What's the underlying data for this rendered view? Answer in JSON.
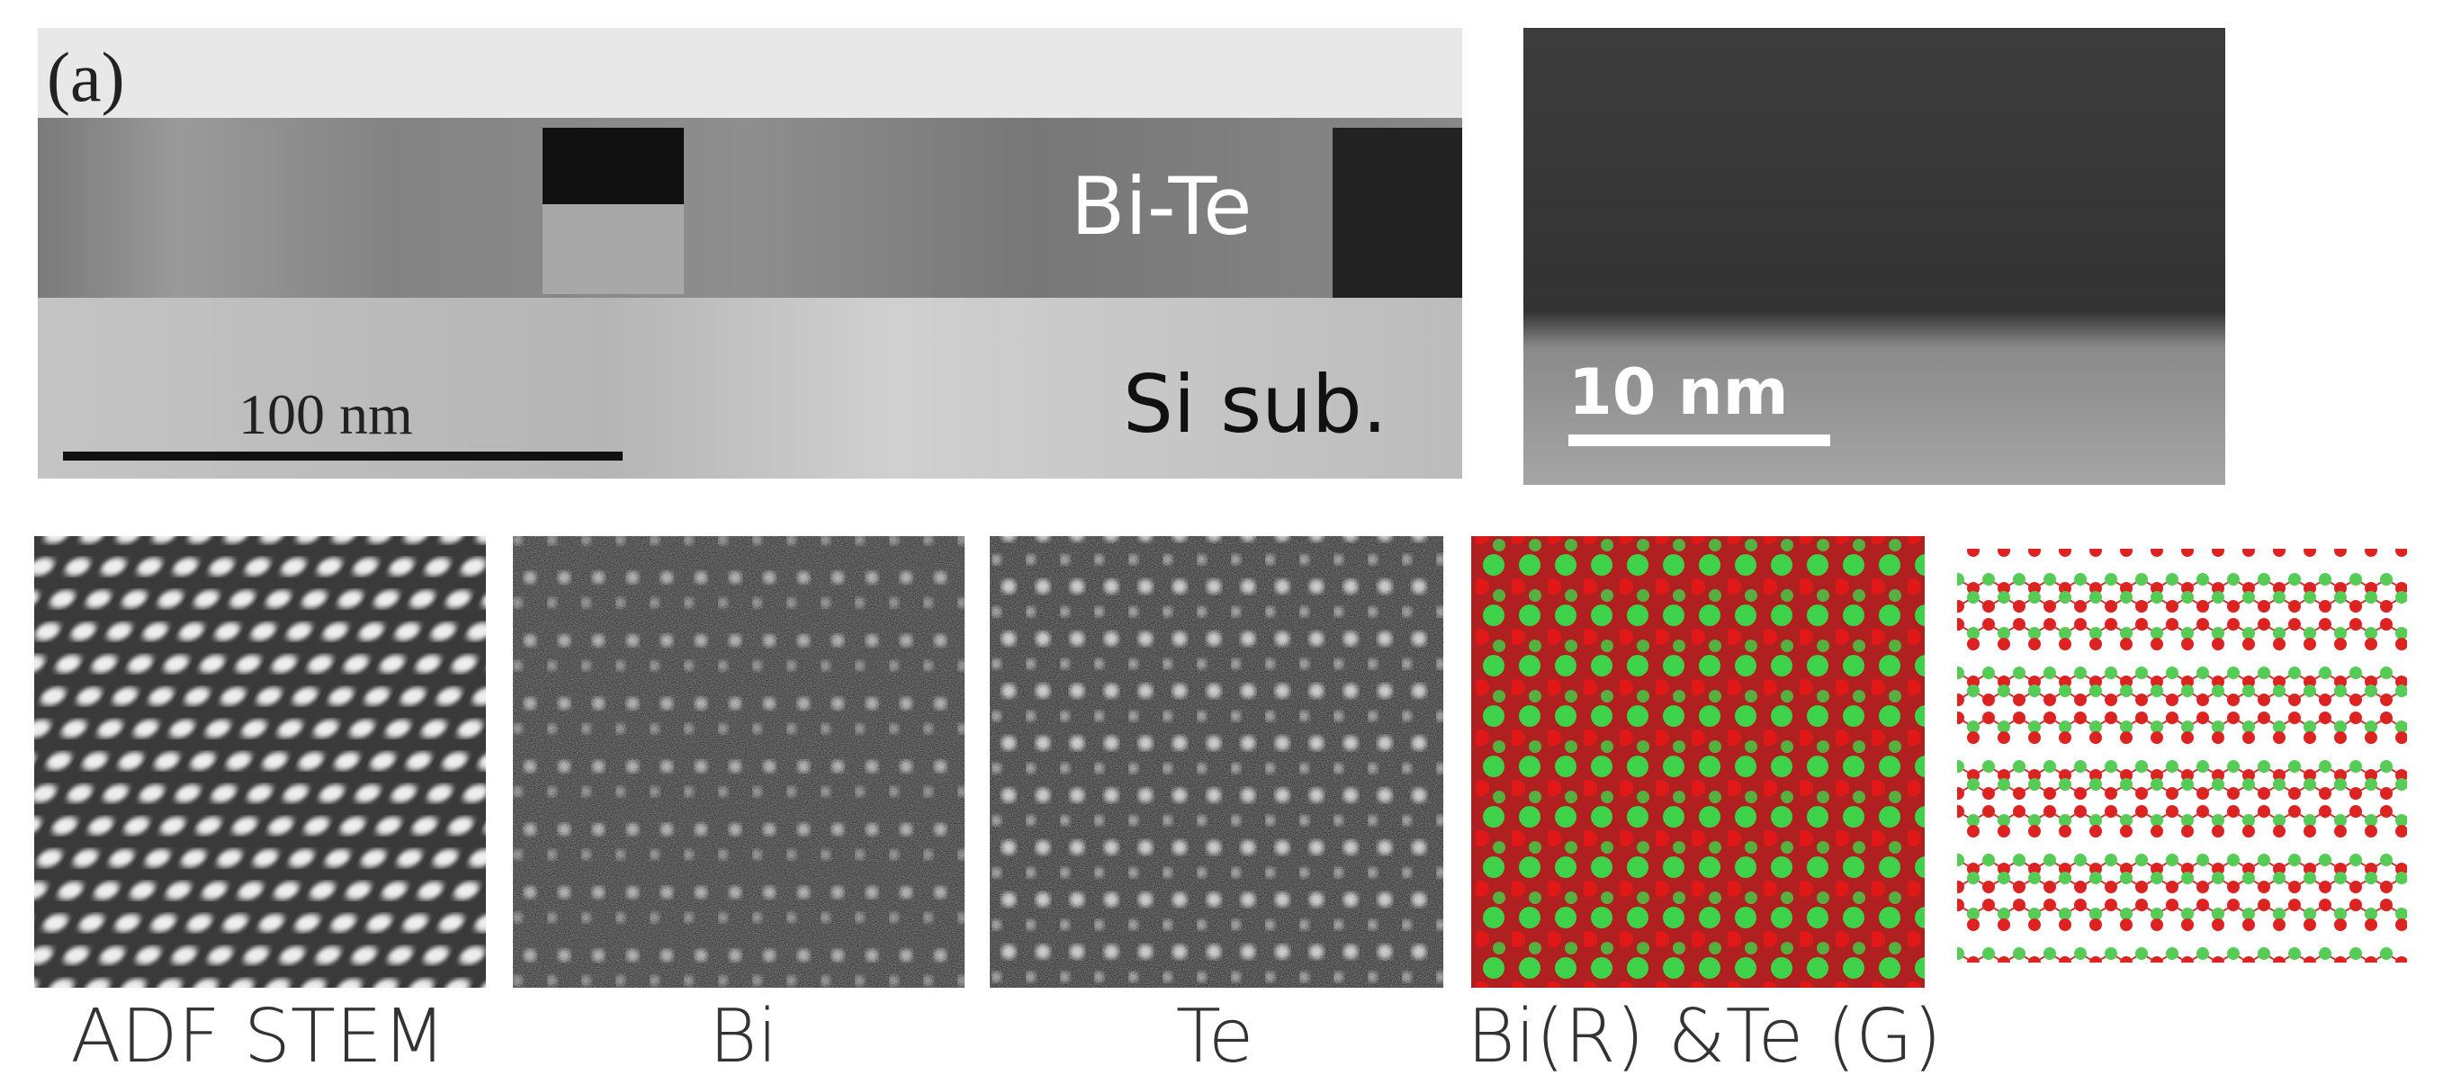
{
  "panel_a": {
    "label": "(a)",
    "film_label": "Bi-Te",
    "substrate_label": "Si sub.",
    "scale_bar": "100 nm"
  },
  "panel_hr": {
    "scale_bar": "10 nm"
  },
  "captions": [
    "ADF STEM",
    "Bi",
    "Te",
    "Bi(R) &Te (G)"
  ]
}
